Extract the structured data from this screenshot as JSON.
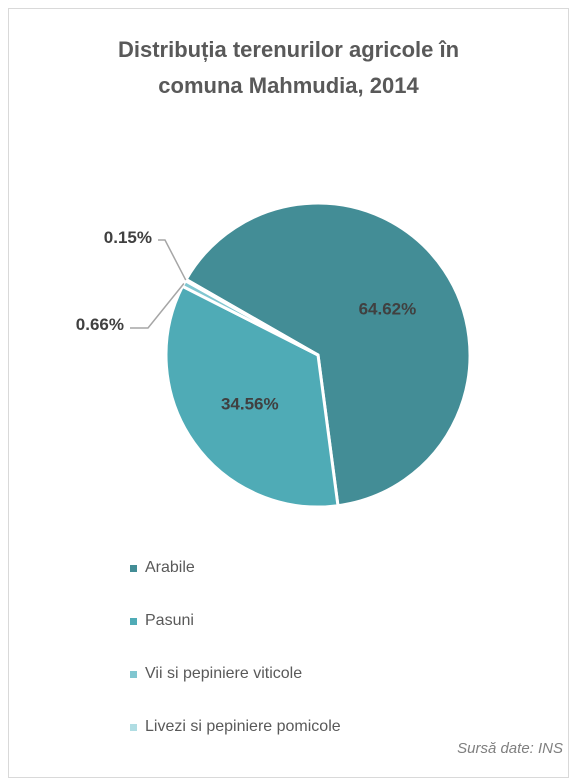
{
  "chart_data": {
    "type": "pie",
    "title_lines": [
      "Distribuția terenurilor agricole în",
      "comuna Mahmudia, 2014"
    ],
    "slices": [
      {
        "name": "Arabile",
        "value": 64.62,
        "label": "64.62%",
        "color": "#438d96"
      },
      {
        "name": "Pasuni",
        "value": 34.56,
        "label": "34.56%",
        "color": "#4fabb6"
      },
      {
        "name": "Vii si pepiniere viticole",
        "value": 0.66,
        "label": "0.66%",
        "color": "#80c6d0"
      },
      {
        "name": "Livezi si pepiniere pomicole",
        "value": 0.15,
        "label": "0.15%",
        "color": "#b0dde3"
      }
    ],
    "legend_position": "bottom-left",
    "source": "Sursă date: INS"
  }
}
